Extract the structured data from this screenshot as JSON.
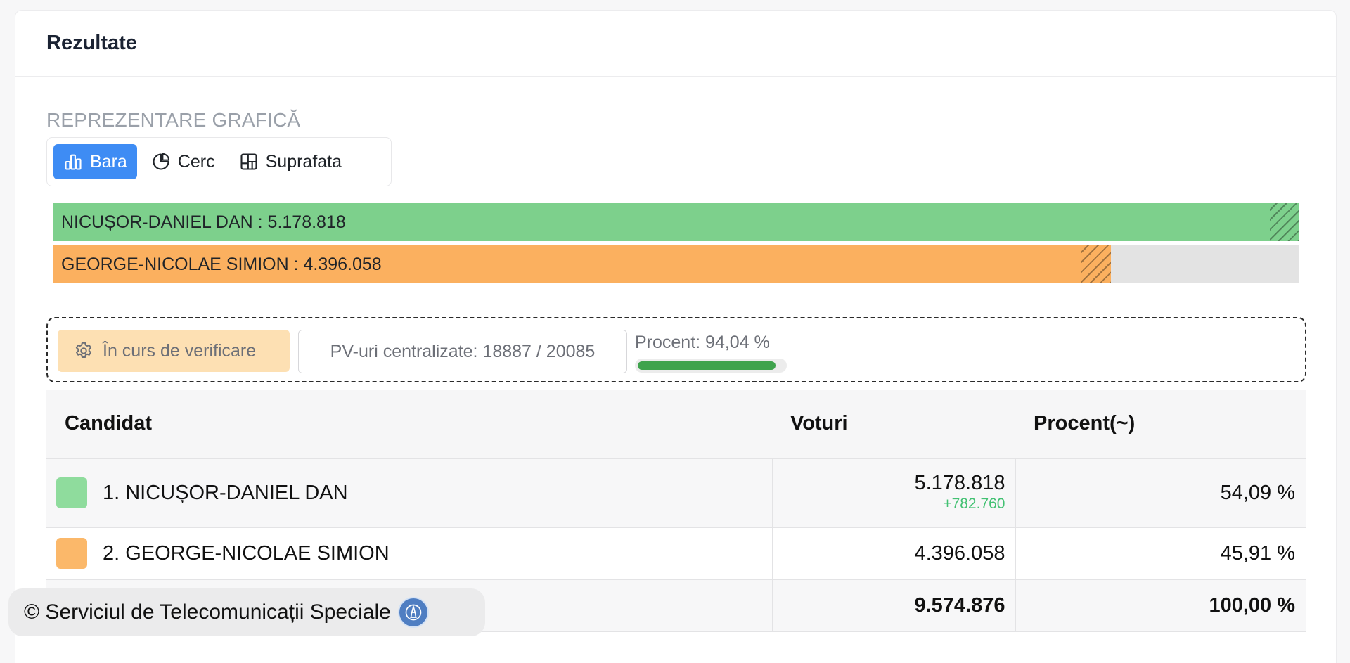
{
  "header": {
    "title": "Rezultate"
  },
  "graphic": {
    "section_label": "REPREZENTARE GRAFICĂ",
    "options": [
      {
        "label": "Bara",
        "icon": "bar-chart-icon",
        "active": true
      },
      {
        "label": "Cerc",
        "icon": "pie-chart-icon",
        "active": false
      },
      {
        "label": "Suprafata",
        "icon": "treemap-icon",
        "active": false
      }
    ]
  },
  "chart_data": {
    "type": "bar",
    "orientation": "horizontal",
    "categories": [
      "NICUȘOR-DANIEL DAN",
      "GEORGE-NICOLAE SIMION"
    ],
    "values": [
      5178818,
      4396058
    ],
    "labels": [
      "NICUȘOR-DANIEL DAN : 5.178.818",
      "GEORGE-NICOLAE SIMION : 4.396.058"
    ],
    "colors": [
      "#7dd08c",
      "#fbb05f"
    ],
    "xlim": [
      0,
      5178818
    ],
    "title": "",
    "xlabel": "",
    "ylabel": ""
  },
  "status": {
    "badge": "În curs de verificare",
    "pv_text": "PV-uri centralizate: 18887 / 20085",
    "progress_label": "Procent: 94,04 %",
    "progress_value": 0.9404
  },
  "table": {
    "headers": {
      "candidate": "Candidat",
      "votes": "Voturi",
      "percent": "Procent(~)"
    },
    "rows": [
      {
        "candidate": "1. NICUȘOR-DANIEL DAN",
        "color": "#8fdc9d",
        "votes": "5.178.818",
        "delta": "+782.760",
        "percent": "54,09 %"
      },
      {
        "candidate": "2. GEORGE-NICOLAE SIMION",
        "color": "#fbb86a",
        "votes": "4.396.058",
        "percent": "45,91 %"
      }
    ],
    "total": {
      "votes": "9.574.876",
      "percent": "100,00 %"
    }
  },
  "footer": {
    "text": "© Serviciul de Telecomunicații Speciale",
    "logo_icon": "sts-logo-icon"
  }
}
